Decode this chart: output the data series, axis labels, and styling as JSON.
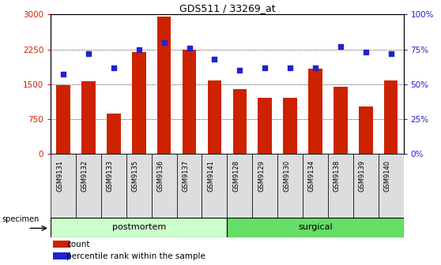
{
  "title": "GDS511 / 33269_at",
  "samples": [
    "GSM9131",
    "GSM9132",
    "GSM9133",
    "GSM9135",
    "GSM9136",
    "GSM9137",
    "GSM9141",
    "GSM9128",
    "GSM9129",
    "GSM9130",
    "GSM9134",
    "GSM9138",
    "GSM9139",
    "GSM9140"
  ],
  "counts": [
    1470,
    1570,
    870,
    2200,
    2960,
    2250,
    1580,
    1390,
    1200,
    1200,
    1830,
    1440,
    1020,
    1580
  ],
  "percentile_ranks": [
    57,
    72,
    62,
    75,
    80,
    76,
    68,
    60,
    62,
    62,
    62,
    77,
    73,
    72
  ],
  "bar_color": "#cc2200",
  "dot_color": "#2222cc",
  "ylim_left": [
    0,
    3000
  ],
  "ylim_right": [
    0,
    100
  ],
  "yticks_left": [
    0,
    750,
    1500,
    2250,
    3000
  ],
  "yticks_right": [
    0,
    25,
    50,
    75,
    100
  ],
  "ytick_labels_right": [
    "0%",
    "25%",
    "50%",
    "75%",
    "100%"
  ],
  "groups": [
    {
      "label": "postmortem",
      "start": 0,
      "end": 6,
      "color": "#ccffcc"
    },
    {
      "label": "surgical",
      "start": 7,
      "end": 13,
      "color": "#66dd66"
    }
  ],
  "specimen_label": "specimen",
  "legend_count_label": "count",
  "legend_pct_label": "percentile rank within the sample",
  "grid_color": "black",
  "grid_style": "dotted",
  "tick_color_left": "#cc2200",
  "tick_color_right": "#2222cc",
  "bar_width": 0.55,
  "xtick_bg": "#dddddd"
}
